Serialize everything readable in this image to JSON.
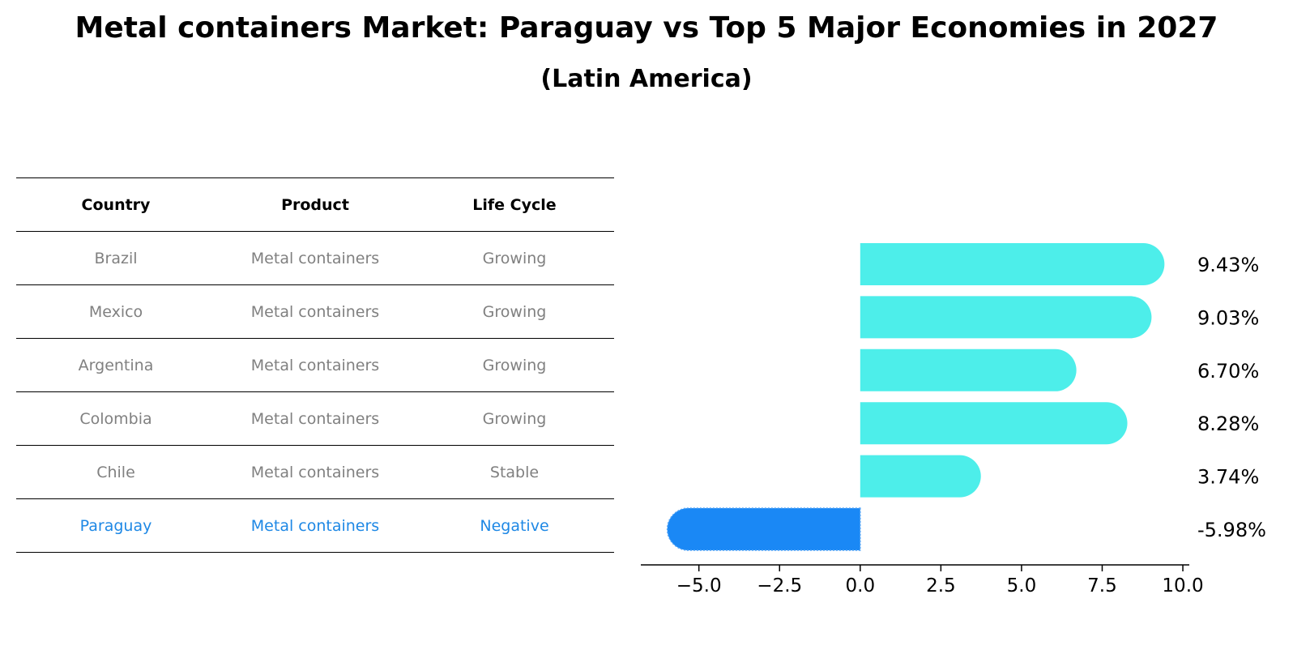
{
  "title": "Metal containers Market: Paraguay vs Top 5 Major Economies in 2027",
  "subtitle": "(Latin America)",
  "table": {
    "headers": [
      "Country",
      "Product",
      "Life Cycle"
    ],
    "rows": [
      {
        "country": "Brazil",
        "product": "Metal containers",
        "life_cycle": "Growing",
        "highlight": false
      },
      {
        "country": "Mexico",
        "product": "Metal containers",
        "life_cycle": "Growing",
        "highlight": false
      },
      {
        "country": "Argentina",
        "product": "Metal containers",
        "life_cycle": "Growing",
        "highlight": false
      },
      {
        "country": "Colombia",
        "product": "Metal containers",
        "life_cycle": "Growing",
        "highlight": false
      },
      {
        "country": "Chile",
        "product": "Metal containers",
        "life_cycle": "Stable",
        "highlight": false
      },
      {
        "country": "Paraguay",
        "product": "Metal containers",
        "life_cycle": "Negative",
        "highlight": true
      }
    ]
  },
  "colors": {
    "positive": "#4deeea",
    "negative": "#1a88f5",
    "highlight_text": "#1e88e5",
    "muted_text": "#808080"
  },
  "chart_data": {
    "type": "bar",
    "orientation": "horizontal",
    "categories": [
      "Brazil",
      "Mexico",
      "Argentina",
      "Colombia",
      "Chile",
      "Paraguay"
    ],
    "values": [
      9.43,
      9.03,
      6.7,
      8.28,
      3.74,
      -5.98
    ],
    "value_labels": [
      "9.43%",
      "9.03%",
      "6.70%",
      "8.28%",
      "3.74%",
      "-5.98%"
    ],
    "xlim": [
      -6.8,
      10.2
    ],
    "xticks": [
      -5.0,
      -2.5,
      0.0,
      2.5,
      5.0,
      7.5,
      10.0
    ],
    "xtick_labels": [
      "−5.0",
      "−2.5",
      "0.0",
      "2.5",
      "5.0",
      "7.5",
      "10.0"
    ],
    "grid": false
  }
}
